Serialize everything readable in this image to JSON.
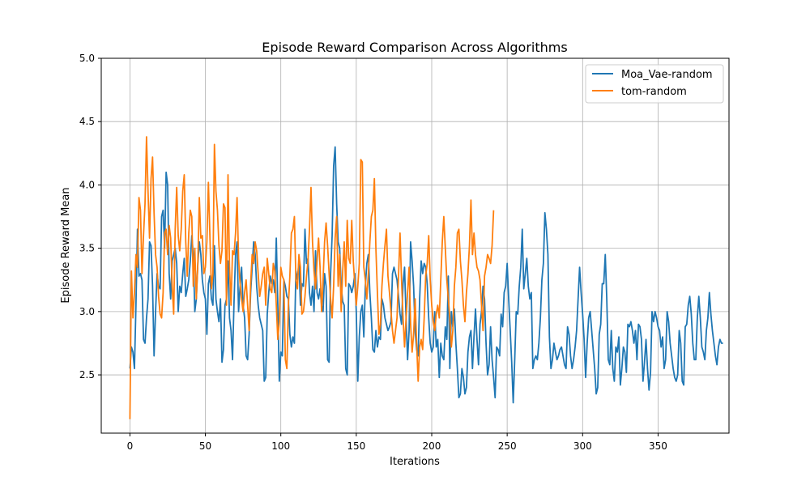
{
  "chart_data": {
    "type": "line",
    "title": "Episode Reward Comparison Across Algorithms",
    "xlabel": "Iterations",
    "ylabel": "Episode Reward Mean",
    "xlim": [
      -19,
      397
    ],
    "ylim": [
      2.04,
      5.0
    ],
    "xticks": [
      0,
      50,
      100,
      150,
      200,
      250,
      300,
      350
    ],
    "yticks": [
      2.5,
      3.0,
      3.5,
      4.0,
      4.5,
      5.0
    ],
    "ytick_labels": [
      "2.5",
      "3.0",
      "3.5",
      "4.0",
      "4.5",
      "5.0"
    ],
    "grid": true,
    "legend_position": "top-right",
    "series": [
      {
        "name": "Moa_Vae-random",
        "color": "#1f77b4",
        "x_start": 0,
        "values": [
          2.55,
          2.72,
          2.68,
          2.55,
          3.05,
          3.65,
          3.28,
          3.3,
          3.25,
          2.78,
          2.75,
          2.95,
          3.1,
          3.55,
          3.52,
          3.2,
          2.65,
          3.0,
          3.3,
          3.2,
          3.18,
          3.75,
          3.8,
          3.5,
          4.1,
          4.0,
          3.3,
          3.1,
          3.4,
          3.45,
          3.5,
          3.38,
          3.0,
          3.2,
          3.15,
          3.3,
          3.42,
          3.12,
          3.18,
          3.25,
          3.4,
          3.6,
          3.45,
          3.0,
          3.1,
          3.38,
          3.55,
          3.45,
          3.25,
          3.15,
          3.1,
          2.82,
          3.22,
          3.28,
          3.1,
          3.05,
          3.52,
          3.1,
          3.0,
          2.92,
          3.1,
          2.6,
          2.7,
          3.05,
          3.1,
          3.4,
          2.95,
          2.85,
          2.62,
          3.08,
          3.45,
          3.55,
          3.0,
          3.2,
          3.35,
          3.05,
          2.95,
          2.65,
          2.62,
          2.82,
          3.15,
          3.35,
          3.55,
          3.45,
          3.2,
          3.05,
          2.95,
          2.9,
          2.85,
          2.45,
          2.48,
          2.98,
          3.15,
          3.28,
          3.22,
          3.25,
          3.15,
          3.58,
          3.05,
          2.45,
          2.68,
          2.65,
          3.25,
          3.2,
          3.12,
          3.1,
          2.82,
          2.72,
          2.8,
          2.75,
          3.32,
          3.25,
          3.4,
          3.05,
          3.22,
          3.2,
          3.65,
          3.38,
          3.42,
          3.15,
          3.05,
          3.2,
          3.0,
          3.48,
          3.15,
          3.1,
          3.18,
          3.05,
          3.0,
          3.3,
          3.2,
          2.62,
          2.6,
          3.3,
          3.6,
          4.15,
          4.3,
          3.85,
          3.55,
          3.5,
          3.2,
          3.08,
          3.05,
          2.55,
          2.5,
          3.22,
          3.2,
          3.15,
          3.2,
          3.3,
          3.0,
          2.45,
          2.8,
          3.0,
          3.05,
          2.8,
          3.2,
          3.38,
          3.45,
          3.15,
          2.95,
          2.7,
          2.68,
          2.85,
          2.72,
          2.8,
          2.78,
          3.1,
          3.05,
          2.95,
          2.9,
          2.85,
          2.88,
          2.92,
          3.3,
          3.35,
          3.3,
          3.25,
          3.12,
          2.98,
          2.9,
          3.22,
          3.35,
          2.95,
          2.62,
          2.85,
          3.55,
          3.4,
          3.2,
          2.85,
          2.7,
          2.65,
          3.1,
          3.4,
          3.3,
          3.38,
          3.35,
          3.22,
          2.95,
          2.75,
          2.68,
          2.72,
          3.0,
          2.72,
          2.78,
          2.48,
          2.75,
          2.65,
          2.62,
          2.88,
          2.78,
          3.28,
          2.55,
          3.0,
          2.88,
          3.02,
          2.75,
          2.55,
          2.32,
          2.35,
          2.55,
          2.48,
          2.35,
          2.4,
          2.68,
          2.8,
          2.85,
          2.55,
          2.8,
          3.02,
          2.78,
          2.58,
          2.9,
          3.0,
          3.2,
          3.1,
          2.75,
          2.5,
          2.58,
          2.88,
          2.62,
          2.48,
          2.32,
          2.72,
          2.7,
          2.65,
          2.98,
          2.88,
          3.15,
          3.2,
          3.38,
          3.1,
          2.85,
          2.6,
          2.28,
          2.62,
          3.0,
          2.98,
          3.2,
          3.35,
          3.65,
          3.18,
          3.3,
          3.42,
          3.2,
          3.1,
          3.15,
          2.55,
          2.62,
          2.65,
          2.62,
          2.75,
          2.95,
          3.25,
          3.38,
          3.78,
          3.65,
          3.45,
          2.8,
          2.55,
          2.62,
          2.75,
          2.68,
          2.62,
          2.65,
          2.7,
          2.72,
          2.65,
          2.58,
          2.55,
          2.88,
          2.82,
          2.65,
          2.55,
          2.62,
          2.72,
          2.85,
          3.1,
          3.35,
          3.15,
          2.98,
          2.78,
          2.48,
          2.75,
          2.95,
          3.0,
          2.85,
          2.7,
          2.55,
          2.35,
          2.4,
          2.82,
          2.9,
          3.22,
          3.22,
          3.45,
          3.1,
          2.62,
          2.58,
          2.85,
          2.55,
          2.45,
          2.72,
          2.68,
          2.8,
          2.42,
          2.55,
          2.72,
          2.68,
          2.52,
          2.9,
          2.88,
          2.92,
          2.85,
          2.75,
          2.85,
          2.62,
          2.9,
          2.88,
          2.78,
          2.45,
          2.6,
          2.78,
          2.55,
          2.38,
          2.52,
          3.0,
          2.92,
          3.0,
          2.95,
          2.88,
          2.85,
          2.72,
          2.8,
          2.55,
          2.62,
          3.0,
          2.92,
          2.75,
          2.65,
          2.55,
          2.48,
          2.45,
          2.5,
          2.85,
          2.75,
          2.45,
          2.42,
          2.88,
          2.9,
          3.05,
          3.12,
          2.98,
          2.75,
          2.62,
          2.62,
          2.95,
          3.12,
          2.95,
          2.72,
          2.68,
          2.62,
          2.85,
          2.95,
          3.15,
          2.98,
          2.85,
          2.75,
          2.65,
          2.58,
          2.72,
          2.78,
          2.75,
          2.75
        ]
      },
      {
        "name": "tom-random",
        "color": "#ff7f0e",
        "x_start": 0,
        "values": [
          2.15,
          3.32,
          2.95,
          3.15,
          3.45,
          3.35,
          3.9,
          3.8,
          3.3,
          3.6,
          3.85,
          4.38,
          3.95,
          3.58,
          4.05,
          4.22,
          3.78,
          3.45,
          3.35,
          3.12,
          2.98,
          2.95,
          3.15,
          3.62,
          3.65,
          3.45,
          3.68,
          3.58,
          3.2,
          2.98,
          3.65,
          3.98,
          3.6,
          3.48,
          3.65,
          3.95,
          4.08,
          3.55,
          3.28,
          3.62,
          3.8,
          3.75,
          3.2,
          3.5,
          3.1,
          3.38,
          3.9,
          3.58,
          3.6,
          3.3,
          3.35,
          3.55,
          4.02,
          3.6,
          3.18,
          3.3,
          4.32,
          3.95,
          3.8,
          3.52,
          3.38,
          3.48,
          3.85,
          3.82,
          3.05,
          4.08,
          3.35,
          3.05,
          3.48,
          3.45,
          3.62,
          3.9,
          3.42,
          3.22,
          3.1,
          3.0,
          3.15,
          3.25,
          3.05,
          2.85,
          3.22,
          3.45,
          3.38,
          3.55,
          3.48,
          3.3,
          3.12,
          3.2,
          3.3,
          3.35,
          3.05,
          3.42,
          3.3,
          3.18,
          3.15,
          3.38,
          3.32,
          3.05,
          2.78,
          2.92,
          3.35,
          3.28,
          3.25,
          2.62,
          2.55,
          3.05,
          3.28,
          3.62,
          3.65,
          3.75,
          3.25,
          3.18,
          3.45,
          3.35,
          2.98,
          3.0,
          3.12,
          3.28,
          3.4,
          3.65,
          3.98,
          3.55,
          3.32,
          3.18,
          3.4,
          3.58,
          3.35,
          3.0,
          3.25,
          3.55,
          3.7,
          3.52,
          3.3,
          3.1,
          2.95,
          3.2,
          3.58,
          3.75,
          3.2,
          3.45,
          3.0,
          3.32,
          3.55,
          3.2,
          3.72,
          3.42,
          3.38,
          3.72,
          3.4,
          3.22,
          3.05,
          3.2,
          3.38,
          4.2,
          4.18,
          3.35,
          3.25,
          3.1,
          3.3,
          3.55,
          3.75,
          3.8,
          4.05,
          3.5,
          3.15,
          2.82,
          2.9,
          3.2,
          3.38,
          3.52,
          3.65,
          3.28,
          3.15,
          3.0,
          2.85,
          2.75,
          2.85,
          2.95,
          3.28,
          3.62,
          3.25,
          2.95,
          2.72,
          2.95,
          3.15,
          3.35,
          2.9,
          2.68,
          2.82,
          3.1,
          2.75,
          2.45,
          2.72,
          2.78,
          2.7,
          2.95,
          3.28,
          3.38,
          3.6,
          3.25,
          3.05,
          2.92,
          2.85,
          2.98,
          3.05,
          2.95,
          3.25,
          3.55,
          3.75,
          3.5,
          3.25,
          3.1,
          2.95,
          2.72,
          2.85,
          3.2,
          3.35,
          3.62,
          3.65,
          3.4,
          3.25,
          3.05,
          2.92,
          3.15,
          3.3,
          3.52,
          3.88,
          3.45,
          3.62,
          3.45,
          3.35,
          3.32,
          3.25,
          3.05,
          2.85,
          3.28,
          3.35,
          3.45,
          3.42,
          3.38,
          3.52,
          3.8
        ]
      }
    ]
  }
}
